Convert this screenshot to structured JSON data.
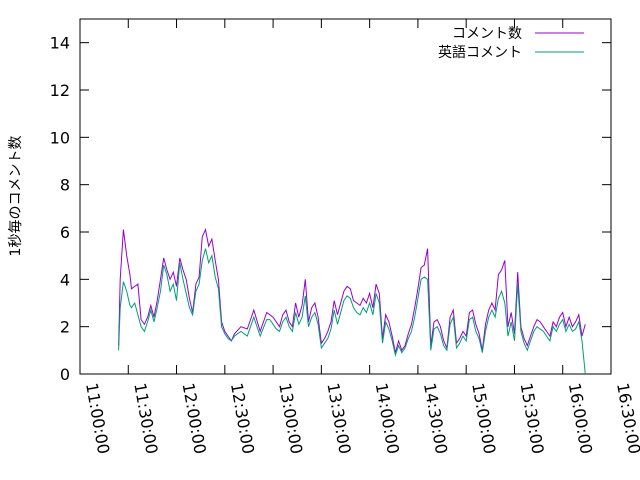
{
  "chart_data": {
    "type": "line",
    "title": "",
    "xlabel": "",
    "ylabel": "1秒毎のコメント数",
    "xlim": [
      "11:00:00",
      "16:30:00"
    ],
    "ylim": [
      0,
      15
    ],
    "x_tick_labels": [
      "11:00:00",
      "11:30:00",
      "12:00:00",
      "12:30:00",
      "13:00:00",
      "13:30:00",
      "14:00:00",
      "14:30:00",
      "15:00:00",
      "15:30:00",
      "16:00:00",
      "16:30:00"
    ],
    "y_tick_labels": [
      "0",
      "2",
      "4",
      "6",
      "8",
      "10",
      "12",
      "14"
    ],
    "legend_position": "top-right",
    "grid": false,
    "series": [
      {
        "name": "コメント数",
        "color": "#9400d3",
        "x": [
          "11:24:00",
          "11:25:00",
          "11:27:00",
          "11:29:00",
          "11:31:00",
          "11:32:00",
          "11:34:00",
          "11:36:00",
          "11:38:00",
          "11:40:00",
          "11:42:00",
          "11:44:00",
          "11:46:00",
          "11:48:00",
          "11:50:00",
          "11:52:00",
          "11:54:00",
          "11:56:00",
          "11:58:00",
          "12:00:00",
          "12:02:00",
          "12:04:00",
          "12:06:00",
          "12:08:00",
          "12:10:00",
          "12:12:00",
          "12:14:00",
          "12:16:00",
          "12:18:00",
          "12:20:00",
          "12:22:00",
          "12:24:00",
          "12:26:00",
          "12:28:00",
          "12:30:00",
          "12:32:00",
          "12:34:00",
          "12:36:00",
          "12:40:00",
          "12:44:00",
          "12:48:00",
          "12:52:00",
          "12:56:00",
          "12:58:00",
          "13:00:00",
          "13:02:00",
          "13:04:00",
          "13:06:00",
          "13:08:00",
          "13:10:00",
          "13:12:00",
          "13:14:00",
          "13:16:00",
          "13:18:00",
          "13:20:00",
          "13:22:00",
          "13:24:00",
          "13:26:00",
          "13:28:00",
          "13:30:00",
          "13:32:00",
          "13:34:00",
          "13:36:00",
          "13:38:00",
          "13:40:00",
          "13:42:00",
          "13:44:00",
          "13:46:00",
          "13:48:00",
          "13:50:00",
          "13:52:00",
          "13:54:00",
          "13:56:00",
          "13:58:00",
          "14:00:00",
          "14:02:00",
          "14:04:00",
          "14:06:00",
          "14:08:00",
          "14:10:00",
          "14:12:00",
          "14:14:00",
          "14:16:00",
          "14:18:00",
          "14:20:00",
          "14:22:00",
          "14:24:00",
          "14:26:00",
          "14:28:00",
          "14:30:00",
          "14:32:00",
          "14:34:00",
          "14:36:00",
          "14:38:00",
          "14:40:00",
          "14:42:00",
          "14:44:00",
          "14:46:00",
          "14:48:00",
          "14:50:00",
          "14:52:00",
          "14:54:00",
          "14:56:00",
          "14:58:00",
          "15:00:00",
          "15:02:00",
          "15:04:00",
          "15:06:00",
          "15:08:00",
          "15:10:00",
          "15:12:00",
          "15:14:00",
          "15:16:00",
          "15:18:00",
          "15:20:00",
          "15:22:00",
          "15:24:00",
          "15:26:00",
          "15:28:00",
          "15:30:00",
          "15:32:00",
          "15:34:00",
          "15:36:00",
          "15:38:00",
          "15:40:00",
          "15:42:00",
          "15:44:00",
          "15:46:00",
          "15:48:00",
          "15:50:00",
          "15:52:00",
          "15:54:00",
          "15:56:00",
          "15:58:00",
          "16:00:00",
          "16:02:00",
          "16:04:00",
          "16:06:00",
          "16:08:00",
          "16:10:00",
          "16:12:00",
          "16:14:00"
        ],
        "y": [
          1.2,
          4.0,
          6.1,
          5.0,
          4.2,
          3.6,
          3.7,
          3.8,
          2.3,
          2.1,
          2.4,
          2.9,
          2.4,
          3.1,
          4.0,
          4.9,
          4.4,
          4.0,
          4.3,
          3.7,
          4.9,
          4.4,
          4.0,
          3.2,
          2.6,
          3.8,
          4.1,
          5.8,
          6.1,
          5.4,
          5.7,
          4.8,
          4.0,
          2.2,
          1.8,
          1.6,
          1.4,
          1.7,
          2.0,
          1.9,
          2.7,
          1.8,
          2.6,
          2.5,
          2.4,
          2.2,
          2.0,
          2.5,
          2.7,
          2.2,
          2.0,
          3.0,
          2.4,
          2.9,
          4.0,
          2.2,
          2.8,
          3.0,
          2.4,
          1.3,
          1.5,
          1.8,
          2.2,
          3.1,
          2.5,
          3.0,
          3.5,
          3.7,
          3.6,
          3.1,
          3.0,
          2.9,
          3.2,
          3.0,
          3.4,
          2.8,
          3.8,
          3.4,
          1.5,
          2.5,
          2.2,
          1.6,
          0.9,
          1.4,
          1.0,
          1.2,
          1.7,
          2.1,
          2.8,
          3.6,
          4.5,
          4.6,
          5.3,
          1.2,
          2.2,
          2.3,
          2.0,
          1.4,
          1.1,
          2.4,
          2.7,
          1.3,
          1.5,
          1.8,
          1.6,
          2.6,
          2.7,
          2.1,
          1.7,
          1.0,
          2.1,
          2.7,
          3.0,
          2.7,
          4.2,
          4.4,
          4.8,
          2.0,
          2.6,
          1.7,
          4.3,
          2.0,
          1.5,
          1.2,
          1.6,
          2.0,
          2.3,
          2.2,
          2.0,
          1.8,
          1.6,
          2.2,
          2.0,
          2.4,
          2.6,
          2.0,
          2.4,
          2.0,
          2.2,
          2.5,
          1.6,
          2.1
        ]
      },
      {
        "name": "英語コメント",
        "color": "#009e73",
        "x": [
          "11:24:00",
          "11:25:00",
          "11:27:00",
          "11:29:00",
          "11:31:00",
          "11:32:00",
          "11:34:00",
          "11:36:00",
          "11:38:00",
          "11:40:00",
          "11:42:00",
          "11:44:00",
          "11:46:00",
          "11:48:00",
          "11:50:00",
          "11:52:00",
          "11:54:00",
          "11:56:00",
          "11:58:00",
          "12:00:00",
          "12:02:00",
          "12:04:00",
          "12:06:00",
          "12:08:00",
          "12:10:00",
          "12:12:00",
          "12:14:00",
          "12:16:00",
          "12:18:00",
          "12:20:00",
          "12:22:00",
          "12:24:00",
          "12:26:00",
          "12:28:00",
          "12:30:00",
          "12:32:00",
          "12:34:00",
          "12:36:00",
          "12:40:00",
          "12:44:00",
          "12:48:00",
          "12:52:00",
          "12:56:00",
          "12:58:00",
          "13:00:00",
          "13:02:00",
          "13:04:00",
          "13:06:00",
          "13:08:00",
          "13:10:00",
          "13:12:00",
          "13:14:00",
          "13:16:00",
          "13:18:00",
          "13:20:00",
          "13:22:00",
          "13:24:00",
          "13:26:00",
          "13:28:00",
          "13:30:00",
          "13:32:00",
          "13:34:00",
          "13:36:00",
          "13:38:00",
          "13:40:00",
          "13:42:00",
          "13:44:00",
          "13:46:00",
          "13:48:00",
          "13:50:00",
          "13:52:00",
          "13:54:00",
          "13:56:00",
          "13:58:00",
          "14:00:00",
          "14:02:00",
          "14:04:00",
          "14:06:00",
          "14:08:00",
          "14:10:00",
          "14:12:00",
          "14:14:00",
          "14:16:00",
          "14:18:00",
          "14:20:00",
          "14:22:00",
          "14:24:00",
          "14:26:00",
          "14:28:00",
          "14:30:00",
          "14:32:00",
          "14:34:00",
          "14:36:00",
          "14:38:00",
          "14:40:00",
          "14:42:00",
          "14:44:00",
          "14:46:00",
          "14:48:00",
          "14:50:00",
          "14:52:00",
          "14:54:00",
          "14:56:00",
          "14:58:00",
          "15:00:00",
          "15:02:00",
          "15:04:00",
          "15:06:00",
          "15:08:00",
          "15:10:00",
          "15:12:00",
          "15:14:00",
          "15:16:00",
          "15:18:00",
          "15:20:00",
          "15:22:00",
          "15:24:00",
          "15:26:00",
          "15:28:00",
          "15:30:00",
          "15:32:00",
          "15:34:00",
          "15:36:00",
          "15:38:00",
          "15:40:00",
          "15:42:00",
          "15:44:00",
          "15:46:00",
          "15:48:00",
          "15:50:00",
          "15:52:00",
          "15:54:00",
          "15:56:00",
          "15:58:00",
          "16:00:00",
          "16:02:00",
          "16:04:00",
          "16:06:00",
          "16:08:00",
          "16:10:00",
          "16:12:00",
          "16:14:00"
        ],
        "y": [
          1.0,
          2.8,
          3.9,
          3.5,
          2.9,
          2.8,
          3.0,
          2.5,
          2.0,
          1.8,
          2.2,
          2.7,
          2.2,
          2.8,
          3.5,
          4.6,
          4.2,
          3.5,
          3.8,
          3.1,
          4.7,
          4.0,
          3.4,
          2.8,
          2.5,
          3.5,
          3.8,
          4.8,
          5.3,
          4.7,
          5.0,
          4.1,
          3.6,
          2.0,
          1.7,
          1.5,
          1.4,
          1.6,
          1.8,
          1.6,
          2.4,
          1.6,
          2.3,
          2.3,
          2.1,
          1.9,
          1.8,
          2.2,
          2.4,
          2.0,
          1.8,
          2.6,
          2.1,
          2.4,
          3.3,
          2.0,
          2.4,
          2.6,
          2.1,
          1.1,
          1.3,
          1.5,
          1.9,
          2.7,
          2.1,
          2.6,
          3.1,
          3.3,
          3.2,
          2.8,
          2.6,
          2.5,
          2.8,
          2.6,
          3.0,
          2.5,
          3.4,
          3.0,
          1.3,
          2.2,
          1.9,
          1.4,
          0.8,
          1.2,
          0.9,
          1.1,
          1.5,
          1.8,
          2.4,
          3.2,
          4.0,
          4.1,
          4.0,
          1.0,
          1.9,
          2.0,
          1.7,
          1.2,
          1.0,
          2.1,
          2.4,
          1.1,
          1.3,
          1.6,
          1.4,
          2.3,
          2.4,
          1.8,
          1.5,
          0.9,
          1.8,
          2.4,
          2.7,
          2.4,
          3.2,
          3.5,
          3.0,
          1.6,
          2.2,
          1.4,
          3.8,
          1.8,
          1.3,
          1.0,
          1.4,
          1.8,
          2.0,
          1.9,
          1.8,
          1.6,
          1.4,
          2.0,
          1.8,
          2.1,
          2.3,
          1.8,
          2.1,
          1.8,
          1.9,
          2.2,
          1.4,
          0.0
        ]
      }
    ]
  }
}
